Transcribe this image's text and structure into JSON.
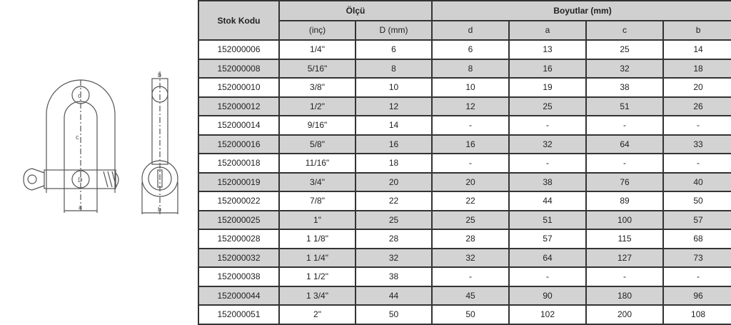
{
  "drawing": {
    "labels": {
      "d": "d",
      "c": "c",
      "D": "D",
      "a": "a",
      "b": "b",
      "b_top": "b"
    }
  },
  "table": {
    "header": {
      "stock_code": "Stok Kodu",
      "size": "Ölçü",
      "dimensions": "Boyutlar (mm)",
      "sub": [
        "(inç)",
        "D (mm)",
        "d",
        "a",
        "c",
        "b"
      ]
    },
    "rows": [
      [
        "152000006",
        "1/4\"",
        "6",
        "6",
        "13",
        "25",
        "14"
      ],
      [
        "152000008",
        "5/16\"",
        "8",
        "8",
        "16",
        "32",
        "18"
      ],
      [
        "152000010",
        "3/8\"",
        "10",
        "10",
        "19",
        "38",
        "20"
      ],
      [
        "152000012",
        "1/2\"",
        "12",
        "12",
        "25",
        "51",
        "26"
      ],
      [
        "152000014",
        "9/16\"",
        "14",
        "-",
        "-",
        "-",
        "-"
      ],
      [
        "152000016",
        "5/8\"",
        "16",
        "16",
        "32",
        "64",
        "33"
      ],
      [
        "152000018",
        "11/16\"",
        "18",
        "-",
        "-",
        "-",
        "-"
      ],
      [
        "152000019",
        "3/4\"",
        "20",
        "20",
        "38",
        "76",
        "40"
      ],
      [
        "152000022",
        "7/8\"",
        "22",
        "22",
        "44",
        "89",
        "50"
      ],
      [
        "152000025",
        "1\"",
        "25",
        "25",
        "51",
        "100",
        "57"
      ],
      [
        "152000028",
        "1 1/8\"",
        "28",
        "28",
        "57",
        "115",
        "68"
      ],
      [
        "152000032",
        "1 1/4\"",
        "32",
        "32",
        "64",
        "127",
        "73"
      ],
      [
        "152000038",
        "1 1/2\"",
        "38",
        "-",
        "-",
        "-",
        "-"
      ],
      [
        "152000044",
        "1 3/4\"",
        "44",
        "45",
        "90",
        "180",
        "96"
      ],
      [
        "152000051",
        "2\"",
        "50",
        "50",
        "102",
        "200",
        "108"
      ]
    ]
  }
}
